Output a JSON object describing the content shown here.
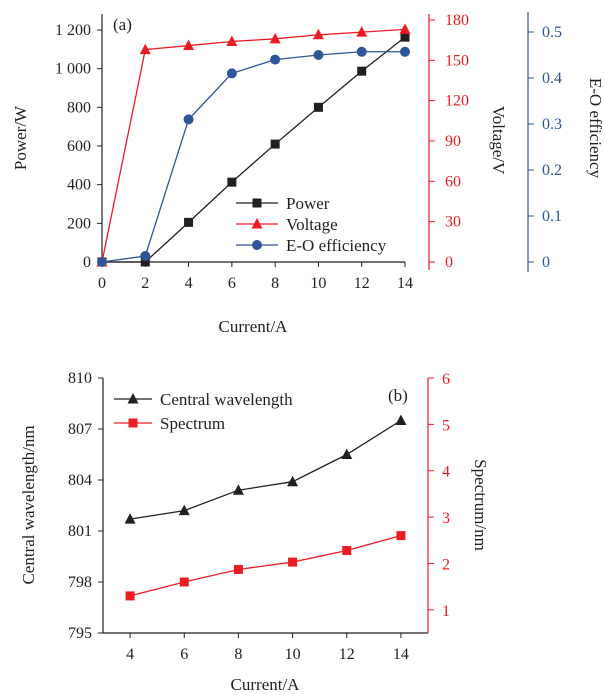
{
  "colors": {
    "black": "#231f20",
    "red": "#ed1c24",
    "blue": "#2e5597"
  },
  "chart_data": [
    {
      "type": "line",
      "panel_label": "(a)",
      "xlabel": "Current/A",
      "x_ticks": [
        "0",
        "2",
        "4",
        "6",
        "8",
        "10",
        "12",
        "14"
      ],
      "xlim": [
        0,
        14
      ],
      "axes": {
        "left": {
          "label": "Power/W",
          "ylim": [
            0,
            1200
          ],
          "ticks": [
            "0",
            "200",
            "400",
            "600",
            "800",
            "1 000",
            "1 200"
          ],
          "tick_values": [
            0,
            200,
            400,
            600,
            800,
            1000,
            1200
          ]
        },
        "right1": {
          "label": "Voltage/V",
          "ylim": [
            0,
            180
          ],
          "ticks": [
            "0",
            "30",
            "60",
            "90",
            "120",
            "150",
            "180"
          ],
          "tick_values": [
            0,
            30,
            60,
            90,
            120,
            150,
            180
          ]
        },
        "right2": {
          "label": "E-O efficiency",
          "ylim": [
            0,
            0.5
          ],
          "ticks": [
            "0",
            "0.1",
            "0.2",
            "0.3",
            "0.4",
            "0.5"
          ],
          "tick_values": [
            0,
            0.1,
            0.2,
            0.3,
            0.4,
            0.5
          ]
        }
      },
      "series": [
        {
          "name": "Power",
          "axis": "left",
          "marker": "square",
          "color": "black",
          "x": [
            0,
            2,
            4,
            6,
            8,
            10,
            12,
            14
          ],
          "y": [
            0,
            0,
            205,
            413,
            610,
            800,
            987,
            1163
          ]
        },
        {
          "name": "Voltage",
          "axis": "right1",
          "marker": "triangle",
          "color": "red",
          "x": [
            0,
            2,
            4,
            6,
            8,
            10,
            12,
            14
          ],
          "y": [
            0,
            158,
            161,
            164,
            166,
            169,
            171,
            173
          ]
        },
        {
          "name": "E-O efficiency",
          "axis": "right2",
          "marker": "circle",
          "color": "blue",
          "x": [
            0,
            2,
            4,
            6,
            8,
            10,
            12,
            14
          ],
          "y": [
            0,
            0.013,
            0.31,
            0.41,
            0.44,
            0.45,
            0.457,
            0.457
          ]
        }
      ],
      "legend_placement": "bottom-right"
    },
    {
      "type": "line",
      "panel_label": "(b)",
      "xlabel": "Current/A",
      "x_ticks": [
        "4",
        "6",
        "8",
        "10",
        "12",
        "14"
      ],
      "xlim": [
        3,
        15
      ],
      "axes": {
        "left": {
          "label": "Central wavelength/nm",
          "ylim": [
            795,
            810
          ],
          "ticks": [
            "795",
            "798",
            "801",
            "804",
            "807",
            "810"
          ],
          "tick_values": [
            795,
            798,
            801,
            804,
            807,
            810
          ]
        },
        "right": {
          "label": "Spectrum/nm",
          "ylim": [
            0.5,
            6
          ],
          "ticks": [
            "1",
            "2",
            "3",
            "4",
            "5",
            "6"
          ],
          "tick_values": [
            1,
            2,
            3,
            4,
            5,
            6
          ]
        }
      },
      "series": [
        {
          "name": "Central wavelength",
          "axis": "left",
          "marker": "triangle",
          "color": "black",
          "x": [
            4,
            6,
            8,
            10,
            12,
            14
          ],
          "y": [
            801.7,
            802.2,
            803.4,
            803.9,
            805.5,
            807.5
          ]
        },
        {
          "name": "Spectrum",
          "axis": "right",
          "marker": "square",
          "color": "red",
          "x": [
            4,
            6,
            8,
            10,
            12,
            14
          ],
          "y": [
            1.3,
            1.6,
            1.87,
            2.03,
            2.28,
            2.6
          ]
        }
      ],
      "legend_placement": "top-left"
    }
  ]
}
